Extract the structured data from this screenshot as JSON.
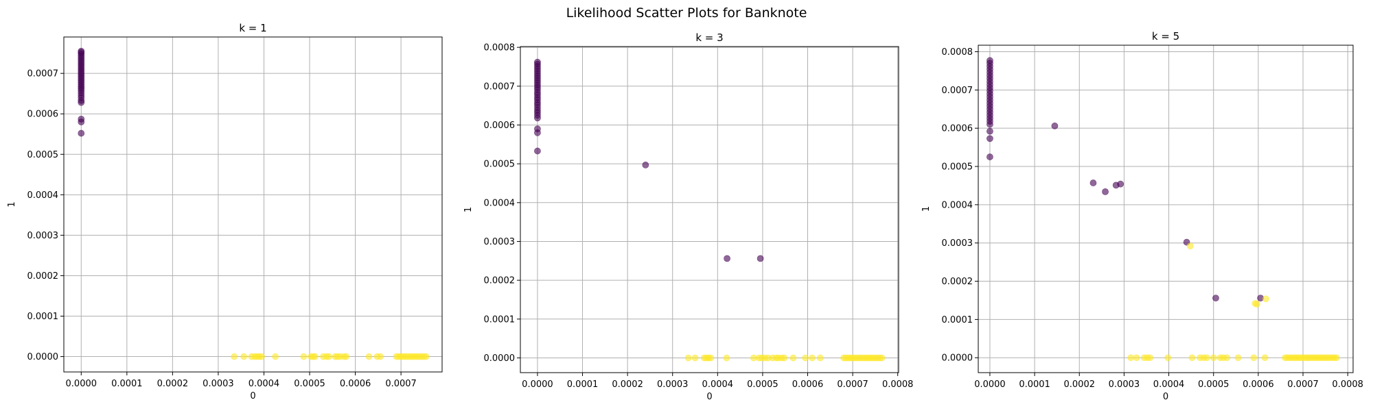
{
  "figure": {
    "suptitle": "Likelihood Scatter Plots for Banknote"
  },
  "colors": {
    "class_0": "#440154",
    "class_1": "#fde725",
    "grid": "#b0b0b0",
    "axis": "#000000"
  },
  "chart_data": [
    {
      "type": "scatter",
      "title": "k = 1",
      "xlabel": "0",
      "ylabel": "1",
      "xlim": [
        -3.8e-05,
        0.00079
      ],
      "ylim": [
        -3.8e-05,
        0.00079
      ],
      "xticks": [
        0,
        0.0001,
        0.0002,
        0.0003,
        0.0004,
        0.0005,
        0.0006,
        0.0007
      ],
      "xtick_labels": [
        "0.0000",
        "0.0001",
        "0.0002",
        "0.0003",
        "0.0004",
        "0.0005",
        "0.0006",
        "0.0007"
      ],
      "yticks": [
        0,
        0.0001,
        0.0002,
        0.0003,
        0.0004,
        0.0005,
        0.0006,
        0.0007
      ],
      "ytick_labels": [
        "0.0000",
        "0.0001",
        "0.0002",
        "0.0003",
        "0.0004",
        "0.0005",
        "0.0006",
        "0.0007"
      ],
      "grid": true,
      "marker_opacity": 0.6,
      "series": [
        {
          "class": 0,
          "color": "#440154",
          "points": [
            [
              0,
              0.000552
            ],
            [
              0,
              0.00058
            ],
            [
              0,
              0.000587
            ],
            [
              0,
              0.000628
            ],
            [
              0,
              0.000633
            ],
            [
              0,
              0.00064
            ],
            [
              0,
              0.000646
            ],
            [
              0,
              0.000652
            ],
            [
              0,
              0.000658
            ],
            [
              0,
              0.000663
            ],
            [
              0,
              0.000668
            ],
            [
              0,
              0.000673
            ],
            [
              0,
              0.000678
            ],
            [
              0,
              0.000683
            ],
            [
              0,
              0.000688
            ],
            [
              0,
              0.000693
            ],
            [
              0,
              0.000698
            ],
            [
              0,
              0.000703
            ],
            [
              0,
              0.000708
            ],
            [
              0,
              0.000713
            ],
            [
              0,
              0.000718
            ],
            [
              0,
              0.000723
            ],
            [
              0,
              0.000728
            ],
            [
              0,
              0.000733
            ],
            [
              0,
              0.000738
            ],
            [
              0,
              0.000743
            ],
            [
              0,
              0.000748
            ],
            [
              0,
              0.000752
            ],
            [
              0,
              0.000755
            ]
          ]
        },
        {
          "class": 1,
          "color": "#fde725",
          "points": [
            [
              0.000335,
              0
            ],
            [
              0.000356,
              0
            ],
            [
              0.000373,
              0
            ],
            [
              0.00038,
              0
            ],
            [
              0.000385,
              0
            ],
            [
              0.00039,
              0
            ],
            [
              0.000395,
              0
            ],
            [
              0.000425,
              0
            ],
            [
              0.000487,
              0
            ],
            [
              0.000503,
              0
            ],
            [
              0.000508,
              0
            ],
            [
              0.000512,
              0
            ],
            [
              0.00053,
              0
            ],
            [
              0.000537,
              0
            ],
            [
              0.000542,
              0
            ],
            [
              0.000556,
              0
            ],
            [
              0.000561,
              0
            ],
            [
              0.000567,
              0
            ],
            [
              0.000575,
              0
            ],
            [
              0.00058,
              0
            ],
            [
              0.00063,
              0
            ],
            [
              0.000648,
              0
            ],
            [
              0.000655,
              0
            ],
            [
              0.00069,
              0
            ],
            [
              0.000695,
              0
            ],
            [
              0.0007,
              0
            ],
            [
              0.000705,
              0
            ],
            [
              0.00071,
              0
            ],
            [
              0.000715,
              0
            ],
            [
              0.00072,
              0
            ],
            [
              0.000725,
              0
            ],
            [
              0.00073,
              0
            ],
            [
              0.000735,
              0
            ],
            [
              0.00074,
              0
            ],
            [
              0.000745,
              0
            ],
            [
              0.00075,
              0
            ],
            [
              0.000755,
              0
            ]
          ]
        }
      ]
    },
    {
      "type": "scatter",
      "title": "k = 3",
      "xlabel": "0",
      "ylabel": "1",
      "xlim": [
        -3.8e-05,
        0.000802
      ],
      "ylim": [
        -3.8e-05,
        0.000802
      ],
      "xticks": [
        0,
        0.0001,
        0.0002,
        0.0003,
        0.0004,
        0.0005,
        0.0006,
        0.0007,
        0.0008
      ],
      "xtick_labels": [
        "0.0000",
        "0.0001",
        "0.0002",
        "0.0003",
        "0.0004",
        "0.0005",
        "0.0006",
        "0.0007",
        "0.0008"
      ],
      "yticks": [
        0,
        0.0001,
        0.0002,
        0.0003,
        0.0004,
        0.0005,
        0.0006,
        0.0007,
        0.0008
      ],
      "ytick_labels": [
        "0.0000",
        "0.0001",
        "0.0002",
        "0.0003",
        "0.0004",
        "0.0005",
        "0.0006",
        "0.0007",
        "0.0008"
      ],
      "grid": true,
      "marker_opacity": 0.6,
      "series": [
        {
          "class": 0,
          "color": "#440154",
          "points": [
            [
              0,
              0.000533
            ],
            [
              0,
              0.00058
            ],
            [
              0,
              0.00059
            ],
            [
              0,
              0.000618
            ],
            [
              0,
              0.000625
            ],
            [
              0,
              0.000632
            ],
            [
              0,
              0.000638
            ],
            [
              0,
              0.000645
            ],
            [
              0,
              0.000652
            ],
            [
              0,
              0.000658
            ],
            [
              0,
              0.000665
            ],
            [
              0,
              0.000671
            ],
            [
              0,
              0.000678
            ],
            [
              0,
              0.000684
            ],
            [
              0,
              0.000691
            ],
            [
              0,
              0.000697
            ],
            [
              0,
              0.000703
            ],
            [
              0,
              0.000709
            ],
            [
              0,
              0.000715
            ],
            [
              0,
              0.000721
            ],
            [
              0,
              0.000727
            ],
            [
              0,
              0.000733
            ],
            [
              0,
              0.000739
            ],
            [
              0,
              0.000745
            ],
            [
              0,
              0.000751
            ],
            [
              0,
              0.000757
            ],
            [
              0,
              0.000762
            ],
            [
              0.00024,
              0.000497
            ],
            [
              0.000421,
              0.000256
            ],
            [
              0.000495,
              0.000256
            ]
          ]
        },
        {
          "class": 1,
          "color": "#fde725",
          "points": [
            [
              0.000335,
              0
            ],
            [
              0.00035,
              0
            ],
            [
              0.00037,
              0
            ],
            [
              0.000375,
              0
            ],
            [
              0.00038,
              0
            ],
            [
              0.000385,
              0
            ],
            [
              0.00042,
              0
            ],
            [
              0.00048,
              0
            ],
            [
              0.000492,
              0
            ],
            [
              0.000498,
              0
            ],
            [
              0.000505,
              0
            ],
            [
              0.000512,
              0
            ],
            [
              0.000522,
              0
            ],
            [
              0.00053,
              0
            ],
            [
              0.000535,
              0
            ],
            [
              0.000542,
              0
            ],
            [
              0.000548,
              0
            ],
            [
              0.000568,
              0
            ],
            [
              0.000595,
              0
            ],
            [
              0.00061,
              0
            ],
            [
              0.000628,
              0
            ],
            [
              0.00068,
              0
            ],
            [
              0.000685,
              0
            ],
            [
              0.00069,
              0
            ],
            [
              0.000695,
              0
            ],
            [
              0.0007,
              0
            ],
            [
              0.000705,
              0
            ],
            [
              0.00071,
              0
            ],
            [
              0.000715,
              0
            ],
            [
              0.00072,
              0
            ],
            [
              0.000725,
              0
            ],
            [
              0.00073,
              0
            ],
            [
              0.000735,
              0
            ],
            [
              0.00074,
              0
            ],
            [
              0.000745,
              0
            ],
            [
              0.00075,
              0
            ],
            [
              0.000755,
              0
            ],
            [
              0.00076,
              0
            ],
            [
              0.000765,
              0
            ]
          ]
        }
      ]
    },
    {
      "type": "scatter",
      "title": "k = 5",
      "xlabel": "0",
      "ylabel": "1",
      "xlim": [
        -2.6e-05,
        0.000812
      ],
      "ylim": [
        -3.9e-05,
        0.000817
      ],
      "xticks": [
        0,
        0.0001,
        0.0002,
        0.0003,
        0.0004,
        0.0005,
        0.0006,
        0.0007,
        0.0008
      ],
      "xtick_labels": [
        "0.0000",
        "0.0001",
        "0.0002",
        "0.0003",
        "0.0004",
        "0.0005",
        "0.0006",
        "0.0007",
        "0.0008"
      ],
      "yticks": [
        0,
        0.0001,
        0.0002,
        0.0003,
        0.0004,
        0.0005,
        0.0006,
        0.0007,
        0.0008
      ],
      "ytick_labels": [
        "0.0000",
        "0.0001",
        "0.0002",
        "0.0003",
        "0.0004",
        "0.0005",
        "0.0006",
        "0.0007",
        "0.0008"
      ],
      "grid": true,
      "marker_opacity": 0.6,
      "series": [
        {
          "class": 0,
          "color": "#440154",
          "points": [
            [
              0,
              0.000525
            ],
            [
              0,
              0.000573
            ],
            [
              0,
              0.000592
            ],
            [
              0,
              0.00061
            ],
            [
              0,
              0.000618
            ],
            [
              0,
              0.000626
            ],
            [
              0,
              0.000634
            ],
            [
              0,
              0.000642
            ],
            [
              0,
              0.00065
            ],
            [
              0,
              0.000658
            ],
            [
              0,
              0.000666
            ],
            [
              0,
              0.000674
            ],
            [
              0,
              0.000682
            ],
            [
              0,
              0.00069
            ],
            [
              0,
              0.000698
            ],
            [
              0,
              0.000706
            ],
            [
              0,
              0.000714
            ],
            [
              0,
              0.000722
            ],
            [
              0,
              0.00073
            ],
            [
              0,
              0.000738
            ],
            [
              0,
              0.000746
            ],
            [
              0,
              0.000754
            ],
            [
              0,
              0.000762
            ],
            [
              0,
              0.00077
            ],
            [
              0,
              0.000777
            ],
            [
              0.000145,
              0.000606
            ],
            [
              0.000231,
              0.000457
            ],
            [
              0.000258,
              0.000434
            ],
            [
              0.000282,
              0.000451
            ],
            [
              0.000292,
              0.000454
            ],
            [
              0.00044,
              0.000302
            ],
            [
              0.000505,
              0.000156
            ],
            [
              0.000605,
              0.000156
            ]
          ]
        },
        {
          "class": 1,
          "color": "#fde725",
          "points": [
            [
              0.000448,
              0.000292
            ],
            [
              0.000593,
              0.000142
            ],
            [
              0.000597,
              0.00014
            ],
            [
              0.000617,
              0.000154
            ],
            [
              0.000315,
              0
            ],
            [
              0.000328,
              0
            ],
            [
              0.000345,
              0
            ],
            [
              0.000352,
              0
            ],
            [
              0.000358,
              0
            ],
            [
              0.000398,
              0
            ],
            [
              0.000452,
              0
            ],
            [
              0.00047,
              0
            ],
            [
              0.000478,
              0
            ],
            [
              0.000485,
              0
            ],
            [
              0.0005,
              0
            ],
            [
              0.000515,
              0
            ],
            [
              0.000522,
              0
            ],
            [
              0.00053,
              0
            ],
            [
              0.000555,
              0
            ],
            [
              0.00059,
              0
            ],
            [
              0.000615,
              0
            ],
            [
              0.00066,
              0
            ],
            [
              0.000665,
              0
            ],
            [
              0.00067,
              0
            ],
            [
              0.000675,
              0
            ],
            [
              0.00068,
              0
            ],
            [
              0.000685,
              0
            ],
            [
              0.00069,
              0
            ],
            [
              0.000695,
              0
            ],
            [
              0.0007,
              0
            ],
            [
              0.000705,
              0
            ],
            [
              0.00071,
              0
            ],
            [
              0.000715,
              0
            ],
            [
              0.00072,
              0
            ],
            [
              0.000725,
              0
            ],
            [
              0.00073,
              0
            ],
            [
              0.000735,
              0
            ],
            [
              0.00074,
              0
            ],
            [
              0.000745,
              0
            ],
            [
              0.00075,
              0
            ],
            [
              0.000755,
              0
            ],
            [
              0.00076,
              0
            ],
            [
              0.000765,
              0
            ],
            [
              0.00077,
              0
            ],
            [
              0.000775,
              0
            ]
          ]
        }
      ]
    }
  ]
}
